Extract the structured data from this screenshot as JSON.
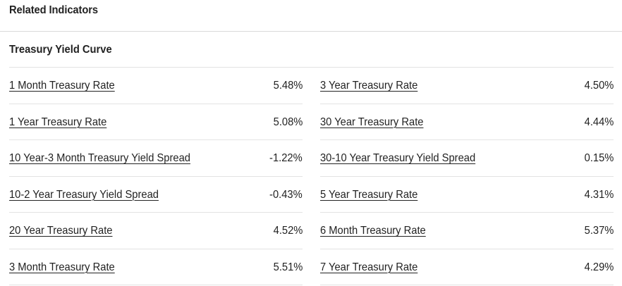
{
  "panel": {
    "title": "Related Indicators"
  },
  "section": {
    "title": "Treasury Yield Curve"
  },
  "left_column": [
    {
      "label": "1 Month Treasury Rate",
      "value": "5.48%"
    },
    {
      "label": "1 Year Treasury Rate",
      "value": "5.08%"
    },
    {
      "label": "10 Year-3 Month Treasury Yield Spread",
      "value": "-1.22%"
    },
    {
      "label": "10-2 Year Treasury Yield Spread",
      "value": "-0.43%"
    },
    {
      "label": "20 Year Treasury Rate",
      "value": "4.52%"
    },
    {
      "label": "3 Month Treasury Rate",
      "value": "5.51%"
    }
  ],
  "right_column": [
    {
      "label": "3 Year Treasury Rate",
      "value": "4.50%"
    },
    {
      "label": "30 Year Treasury Rate",
      "value": "4.44%"
    },
    {
      "label": "30-10 Year Treasury Yield Spread",
      "value": "0.15%"
    },
    {
      "label": "5 Year Treasury Rate",
      "value": "4.31%"
    },
    {
      "label": "6 Month Treasury Rate",
      "value": "5.37%"
    },
    {
      "label": "7 Year Treasury Rate",
      "value": "4.29%"
    }
  ]
}
